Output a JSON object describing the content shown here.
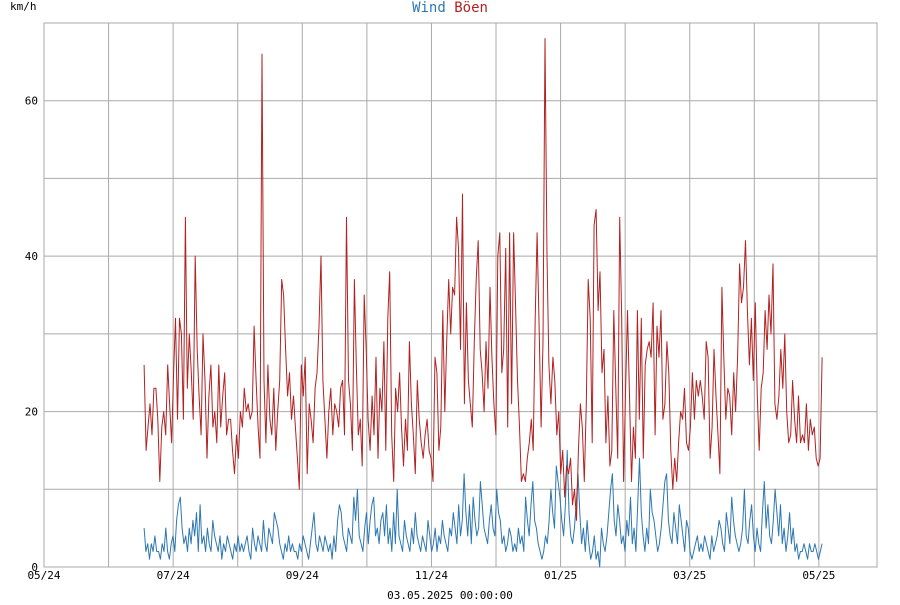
{
  "chart_data": {
    "type": "line",
    "title_parts": [
      {
        "text": "Wind",
        "color": "#2e77b1"
      },
      {
        "text": "Böen",
        "color": "#b22222"
      }
    ],
    "ylabel": "km/h",
    "timestamp": "03.05.2025 00:00:00",
    "x_ticks": [
      "05/24",
      "07/24",
      "09/24",
      "11/24",
      "01/25",
      "03/25",
      "05/25"
    ],
    "x_tick_values": [
      0,
      2,
      4,
      6,
      8,
      10,
      12
    ],
    "x_minor_gridlines": [
      1,
      3,
      5,
      7,
      9,
      11
    ],
    "xlim": [
      0,
      12.9
    ],
    "y_ticks": [
      "0",
      "20",
      "40",
      "60"
    ],
    "y_tick_values": [
      0,
      20,
      40,
      60
    ],
    "y_minor_gridlines": [
      10,
      30,
      50
    ],
    "ylim": [
      0,
      70
    ],
    "grid": true,
    "series": [
      {
        "name": "Wind",
        "color": "#2e77b1",
        "x_start": 1.55,
        "x_end": 12.05,
        "values": [
          5,
          2,
          3,
          1,
          3,
          2,
          4,
          2,
          2,
          1,
          3,
          2,
          5,
          2,
          1,
          3,
          4,
          2,
          6,
          8,
          9,
          5,
          3,
          4,
          2,
          5,
          3,
          6,
          4,
          7,
          2,
          8,
          3,
          4,
          2,
          5,
          3,
          2,
          6,
          4,
          3,
          2,
          4,
          1,
          3,
          2,
          4,
          3,
          2,
          1,
          3,
          2,
          4,
          2,
          3,
          2,
          3,
          4,
          2,
          1,
          5,
          3,
          2,
          4,
          3,
          2,
          6,
          3,
          2,
          5,
          4,
          3,
          7,
          6,
          5,
          3,
          2,
          1,
          3,
          2,
          4,
          2,
          3,
          2,
          2,
          1,
          3,
          2,
          4,
          3,
          2,
          1,
          3,
          5,
          7,
          3,
          2,
          4,
          3,
          2,
          4,
          3,
          2,
          3,
          1,
          4,
          2,
          6,
          8,
          7,
          4,
          3,
          2,
          5,
          4,
          3,
          9,
          6,
          10,
          4,
          3,
          2,
          5,
          7,
          3,
          6,
          8,
          9,
          4,
          5,
          3,
          6,
          7,
          4,
          8,
          3,
          5,
          2,
          7,
          3,
          10,
          4,
          3,
          2,
          6,
          4,
          3,
          2,
          5,
          3,
          7,
          4,
          3,
          2,
          4,
          3,
          2,
          6,
          4,
          2,
          3,
          5,
          2,
          4,
          3,
          6,
          4,
          3,
          2,
          5,
          4,
          7,
          5,
          3,
          8,
          4,
          6,
          12,
          7,
          4,
          8,
          3,
          9,
          6,
          4,
          5,
          11,
          8,
          5,
          4,
          3,
          6,
          8,
          5,
          4,
          10,
          7,
          6,
          3,
          4,
          2,
          3,
          5,
          4,
          2,
          3,
          2,
          5,
          3,
          4,
          2,
          9,
          6,
          4,
          8,
          11,
          6,
          5,
          3,
          2,
          1,
          2,
          4,
          3,
          6,
          10,
          7,
          5,
          13,
          11,
          9,
          6,
          4,
          8,
          15,
          7,
          4,
          3,
          5,
          8,
          12,
          7,
          3,
          5,
          2,
          6,
          3,
          1,
          2,
          4,
          1,
          2,
          0,
          5,
          3,
          2,
          4,
          7,
          10,
          12,
          6,
          4,
          8,
          6,
          3,
          4,
          2,
          6,
          4,
          9,
          3,
          5,
          2,
          8,
          14,
          7,
          4,
          2,
          5,
          3,
          10,
          7,
          6,
          4,
          2,
          3,
          5,
          8,
          11,
          12,
          6,
          4,
          3,
          7,
          5,
          3,
          8,
          6,
          4,
          2,
          6,
          5,
          2,
          1,
          2,
          3,
          4,
          2,
          3,
          2,
          4,
          3,
          2,
          1,
          4,
          2,
          3,
          4,
          6,
          5,
          3,
          2,
          7,
          5,
          3,
          9,
          6,
          4,
          3,
          2,
          3,
          5,
          10,
          4,
          3,
          6,
          8,
          4,
          2,
          5,
          3,
          2,
          7,
          11,
          5,
          8,
          4,
          3,
          6,
          10,
          7,
          4,
          8,
          3,
          5,
          2,
          4,
          7,
          3,
          5,
          2,
          3,
          1,
          2,
          2,
          3,
          2,
          1,
          3,
          2,
          2,
          3,
          2,
          1,
          2,
          3
        ]
      },
      {
        "name": "Böen",
        "color": "#b22222",
        "x_start": 1.55,
        "x_end": 12.05,
        "values": [
          26,
          15,
          18,
          21,
          17,
          23,
          23,
          19,
          11,
          18,
          20,
          17,
          26,
          21,
          16,
          25,
          32,
          19,
          32,
          30,
          19,
          45,
          23,
          30,
          25,
          19,
          40,
          28,
          22,
          17,
          30,
          24,
          14,
          22,
          26,
          18,
          20,
          16,
          26,
          18,
          22,
          25,
          17,
          19,
          19,
          15,
          12,
          17,
          14,
          20,
          18,
          23,
          20,
          21,
          19,
          20,
          31,
          24,
          18,
          14,
          66,
          24,
          16,
          26,
          19,
          17,
          23,
          15,
          20,
          24,
          37,
          35,
          28,
          22,
          25,
          19,
          22,
          18,
          14,
          10,
          26,
          22,
          27,
          12,
          21,
          19,
          16,
          23,
          25,
          31,
          40,
          24,
          19,
          14,
          20,
          23,
          17,
          21,
          20,
          18,
          23,
          24,
          17,
          45,
          24,
          21,
          15,
          37,
          26,
          17,
          19,
          13,
          35,
          28,
          19,
          15,
          22,
          17,
          27,
          14,
          23,
          20,
          29,
          15,
          32,
          38,
          17,
          11,
          23,
          20,
          25,
          18,
          13,
          19,
          15,
          29,
          21,
          17,
          12,
          24,
          19,
          16,
          14,
          17,
          19,
          15,
          14,
          11,
          27,
          25,
          15,
          18,
          33,
          20,
          29,
          37,
          30,
          36,
          35,
          45,
          41,
          28,
          48,
          21,
          34,
          24,
          21,
          18,
          29,
          37,
          42,
          28,
          25,
          20,
          29,
          23,
          36,
          27,
          21,
          17,
          40,
          43,
          25,
          28,
          41,
          18,
          43,
          21,
          43,
          34,
          24,
          18,
          11,
          12,
          11,
          14,
          16,
          19,
          15,
          32,
          43,
          31,
          18,
          29,
          68,
          40,
          26,
          21,
          27,
          24,
          17,
          20,
          12,
          15,
          9,
          13,
          12,
          14,
          8,
          10,
          6,
          15,
          21,
          18,
          11,
          21,
          37,
          32,
          16,
          44,
          46,
          33,
          38,
          25,
          28,
          16,
          22,
          13,
          15,
          33,
          23,
          14,
          45,
          32,
          11,
          23,
          33,
          22,
          11,
          18,
          14,
          33,
          19,
          32,
          14,
          26,
          28,
          29,
          27,
          34,
          17,
          31,
          27,
          33,
          19,
          21,
          29,
          25,
          15,
          10,
          14,
          11,
          16,
          20,
          19,
          23,
          16,
          15,
          18,
          25,
          19,
          24,
          22,
          24,
          22,
          19,
          29,
          27,
          14,
          18,
          28,
          22,
          17,
          12,
          36,
          27,
          19,
          23,
          22,
          17,
          25,
          20,
          27,
          39,
          34,
          36,
          42,
          33,
          26,
          32,
          24,
          34,
          22,
          15,
          23,
          25,
          33,
          28,
          35,
          30,
          39,
          21,
          19,
          22,
          28,
          23,
          30,
          20,
          16,
          17,
          24,
          19,
          16,
          22,
          16,
          17,
          16,
          21,
          15,
          19,
          17,
          18,
          14,
          13,
          14,
          27
        ]
      }
    ]
  }
}
